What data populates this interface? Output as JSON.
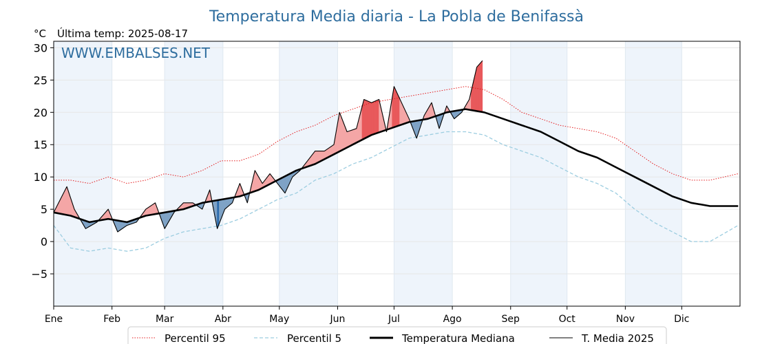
{
  "title": "Temperatura Media diaria - La Pobla de Benifassà",
  "unit_label": "°C",
  "last_temp_label": "Última temp: 2025-08-17",
  "watermark": "WWW.EMBALSES.NET",
  "chart_data": {
    "type": "line",
    "title": "Temperatura Media diaria - La Pobla de Benifassà",
    "xlabel": "",
    "ylabel": "°C",
    "ylim": [
      -10,
      31
    ],
    "yticks": [
      30,
      25,
      20,
      15,
      10,
      5,
      0,
      -5
    ],
    "ytick_labels": [
      "30",
      "25",
      "20",
      "15",
      "10",
      "5",
      "0",
      "−5"
    ],
    "months": [
      "Ene",
      "Feb",
      "Mar",
      "Abr",
      "May",
      "Jun",
      "Jul",
      "Ago",
      "Sep",
      "Oct",
      "Nov",
      "Dic"
    ],
    "month_start_days": [
      1,
      32,
      60,
      91,
      121,
      152,
      182,
      213,
      244,
      274,
      305,
      335
    ],
    "days_in_year": 365,
    "grid": true,
    "legend_position": "bottom",
    "colors": {
      "p95": "#e41a1c",
      "p5": "#9ccde0",
      "median": "#000000",
      "current": "#000000",
      "above_fill": "#f4a6a6",
      "above_strong_fill": "#e8595b",
      "below_fill": "#7fa3c6",
      "below_strong_fill": "#2b6bad",
      "band": "#eef4fb",
      "title": "#2e6d9e"
    },
    "series": [
      {
        "name": "Percentil 95",
        "style": "dotted",
        "points": [
          [
            1,
            9.5
          ],
          [
            10,
            9.5
          ],
          [
            20,
            9
          ],
          [
            30,
            10
          ],
          [
            40,
            9
          ],
          [
            50,
            9.5
          ],
          [
            60,
            10.5
          ],
          [
            70,
            10
          ],
          [
            80,
            11
          ],
          [
            90,
            12.5
          ],
          [
            100,
            12.5
          ],
          [
            110,
            13.5
          ],
          [
            120,
            15.5
          ],
          [
            130,
            17
          ],
          [
            140,
            18
          ],
          [
            150,
            19.5
          ],
          [
            160,
            20.5
          ],
          [
            170,
            21.5
          ],
          [
            180,
            22
          ],
          [
            190,
            22.5
          ],
          [
            200,
            23
          ],
          [
            210,
            23.5
          ],
          [
            220,
            24
          ],
          [
            230,
            23.5
          ],
          [
            240,
            22
          ],
          [
            250,
            20
          ],
          [
            260,
            19
          ],
          [
            270,
            18
          ],
          [
            280,
            17.5
          ],
          [
            290,
            17
          ],
          [
            300,
            16
          ],
          [
            310,
            14
          ],
          [
            320,
            12
          ],
          [
            330,
            10.5
          ],
          [
            340,
            9.5
          ],
          [
            350,
            9.5
          ],
          [
            365,
            10.5
          ]
        ]
      },
      {
        "name": "Percentil 5",
        "style": "dashed",
        "points": [
          [
            1,
            2.5
          ],
          [
            10,
            -1
          ],
          [
            20,
            -1.5
          ],
          [
            30,
            -1
          ],
          [
            40,
            -1.5
          ],
          [
            50,
            -1
          ],
          [
            60,
            0.5
          ],
          [
            70,
            1.5
          ],
          [
            80,
            2
          ],
          [
            90,
            2.5
          ],
          [
            100,
            3.5
          ],
          [
            110,
            5
          ],
          [
            120,
            6.5
          ],
          [
            130,
            7.5
          ],
          [
            140,
            9.5
          ],
          [
            150,
            10.5
          ],
          [
            160,
            12
          ],
          [
            170,
            13
          ],
          [
            180,
            14.5
          ],
          [
            190,
            16
          ],
          [
            200,
            16.5
          ],
          [
            210,
            17
          ],
          [
            220,
            17
          ],
          [
            230,
            16.5
          ],
          [
            240,
            15
          ],
          [
            250,
            14
          ],
          [
            260,
            13
          ],
          [
            270,
            11.5
          ],
          [
            280,
            10
          ],
          [
            290,
            9
          ],
          [
            300,
            7.5
          ],
          [
            310,
            5
          ],
          [
            320,
            3
          ],
          [
            330,
            1.5
          ],
          [
            340,
            0
          ],
          [
            350,
            0
          ],
          [
            365,
            2.5
          ]
        ]
      },
      {
        "name": "Temperatura Mediana",
        "style": "solid-thick",
        "points": [
          [
            1,
            4.5
          ],
          [
            10,
            4
          ],
          [
            20,
            3
          ],
          [
            30,
            3.5
          ],
          [
            40,
            3
          ],
          [
            50,
            4
          ],
          [
            60,
            4.5
          ],
          [
            70,
            5
          ],
          [
            80,
            6
          ],
          [
            90,
            6.5
          ],
          [
            100,
            7
          ],
          [
            110,
            8
          ],
          [
            120,
            9.5
          ],
          [
            130,
            11
          ],
          [
            140,
            12
          ],
          [
            150,
            13.5
          ],
          [
            160,
            15
          ],
          [
            170,
            16.5
          ],
          [
            180,
            17.5
          ],
          [
            190,
            18.5
          ],
          [
            200,
            19
          ],
          [
            210,
            20
          ],
          [
            220,
            20.5
          ],
          [
            230,
            20
          ],
          [
            240,
            19
          ],
          [
            250,
            18
          ],
          [
            260,
            17
          ],
          [
            270,
            15.5
          ],
          [
            280,
            14
          ],
          [
            290,
            13
          ],
          [
            300,
            11.5
          ],
          [
            310,
            10
          ],
          [
            320,
            8.5
          ],
          [
            330,
            7
          ],
          [
            340,
            6
          ],
          [
            350,
            5.5
          ],
          [
            365,
            5.5
          ]
        ]
      },
      {
        "name": "T. Media 2025",
        "style": "solid-thin",
        "points": [
          [
            1,
            4.5
          ],
          [
            8,
            8.5
          ],
          [
            12,
            5
          ],
          [
            18,
            2
          ],
          [
            24,
            3
          ],
          [
            30,
            5
          ],
          [
            35,
            1.5
          ],
          [
            40,
            2.5
          ],
          [
            45,
            3
          ],
          [
            50,
            5
          ],
          [
            55,
            6
          ],
          [
            60,
            2
          ],
          [
            65,
            4.5
          ],
          [
            70,
            6
          ],
          [
            75,
            6
          ],
          [
            80,
            5
          ],
          [
            84,
            8
          ],
          [
            88,
            2
          ],
          [
            92,
            5
          ],
          [
            96,
            6
          ],
          [
            100,
            9
          ],
          [
            104,
            6
          ],
          [
            108,
            11
          ],
          [
            112,
            9
          ],
          [
            116,
            10.5
          ],
          [
            120,
            9
          ],
          [
            124,
            7.5
          ],
          [
            128,
            10
          ],
          [
            132,
            11
          ],
          [
            136,
            12.5
          ],
          [
            140,
            14
          ],
          [
            145,
            14
          ],
          [
            150,
            15
          ],
          [
            153,
            20
          ],
          [
            157,
            17
          ],
          [
            162,
            17.5
          ],
          [
            166,
            22
          ],
          [
            170,
            21.5
          ],
          [
            174,
            22
          ],
          [
            178,
            17
          ],
          [
            182,
            24
          ],
          [
            186,
            21.5
          ],
          [
            190,
            19
          ],
          [
            194,
            16
          ],
          [
            198,
            19.5
          ],
          [
            202,
            21.5
          ],
          [
            206,
            17.5
          ],
          [
            210,
            21
          ],
          [
            214,
            19
          ],
          [
            218,
            20
          ],
          [
            222,
            22
          ],
          [
            226,
            27
          ],
          [
            229,
            28
          ]
        ]
      }
    ]
  },
  "legend": {
    "items": [
      {
        "label": "Percentil 95"
      },
      {
        "label": "Percentil 5"
      },
      {
        "label": "Temperatura Mediana"
      },
      {
        "label": "T. Media 2025"
      }
    ]
  }
}
